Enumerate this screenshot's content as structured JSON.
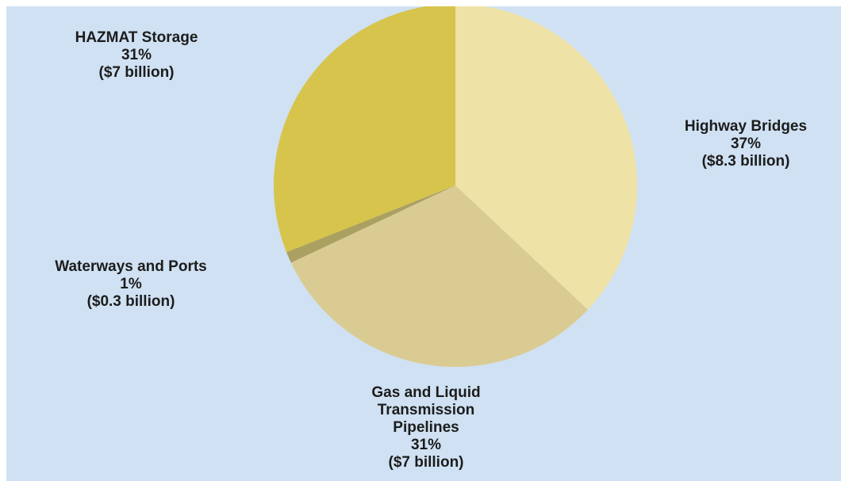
{
  "chart_data": {
    "type": "pie",
    "categories": [
      "Highway Bridges",
      "Gas and Liquid Transmission Pipelines",
      "Waterways and Ports",
      "HAZMAT Storage"
    ],
    "values": [
      37,
      31,
      1,
      31
    ],
    "value_labels": [
      "37%",
      "31%",
      "1%",
      "31%"
    ],
    "amount_labels": [
      "($8.3 billion)",
      "($7 billion)",
      "($0.3 billion)",
      "($7 billion)"
    ],
    "colors": [
      "#efe2a6",
      "#dacb93",
      "#aaa061",
      "#d7c44c"
    ]
  }
}
